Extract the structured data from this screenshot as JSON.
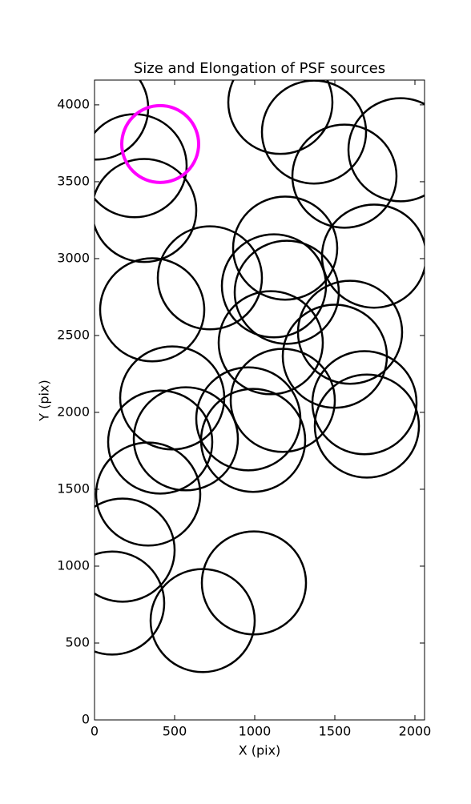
{
  "chart_data": {
    "type": "ellipse",
    "title": "Size and Elongation of PSF sources",
    "xlabel": "X (pix)",
    "ylabel": "Y (pix)",
    "xlim": [
      0,
      2060
    ],
    "ylim": [
      0,
      4161
    ],
    "xticks": [
      0,
      500,
      1000,
      1500,
      2000
    ],
    "yticks": [
      0,
      500,
      1000,
      1500,
      2000,
      2500,
      3000,
      3500,
      4000
    ],
    "series": [
      {
        "color": "#000000",
        "x": [
          10,
          250,
          310,
          1160,
          1370,
          1560,
          1910,
          1190,
          1745,
          720,
          1120,
          360,
          1200,
          1595,
          1100,
          1500,
          485,
          1685,
          1175,
          960,
          990,
          1700,
          410,
          570,
          335,
          175,
          110,
          675,
          995
        ],
        "y": [
          3979,
          3604,
          3313,
          4016,
          3823,
          3536,
          3708,
          3068,
          3016,
          2875,
          2823,
          2667,
          2781,
          2521,
          2453,
          2365,
          2094,
          2063,
          2078,
          1958,
          1818,
          1911,
          1807,
          1828,
          1469,
          1104,
          760,
          646,
          891
        ],
        "width": [
          650,
          650,
          650,
          650,
          650,
          650,
          650,
          650,
          650,
          650,
          650,
          650,
          650,
          650,
          650,
          650,
          650,
          650,
          650,
          650,
          650,
          650,
          650,
          650,
          650,
          650,
          650,
          650,
          650
        ],
        "height": [
          670,
          670,
          670,
          670,
          670,
          670,
          670,
          670,
          670,
          670,
          670,
          670,
          670,
          670,
          670,
          670,
          670,
          670,
          670,
          670,
          670,
          670,
          670,
          670,
          670,
          670,
          670,
          670,
          670
        ]
      },
      {
        "color": "#ff00ff",
        "x": [
          410
        ],
        "y": [
          3745
        ],
        "width": [
          480
        ],
        "height": [
          500
        ]
      }
    ]
  }
}
